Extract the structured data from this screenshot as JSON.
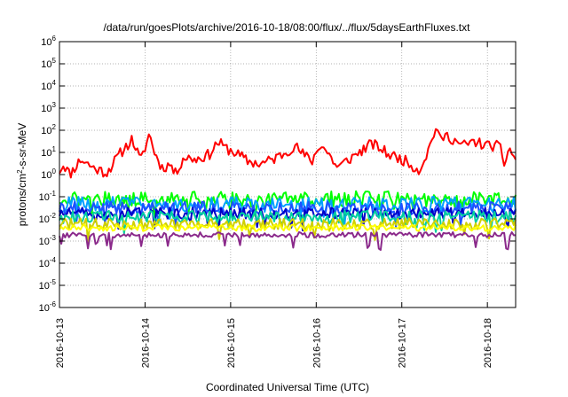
{
  "chart_data": {
    "type": "line",
    "title": "/data/run/goesPlots/archive/2016-10-18/08:00/flux/../flux/5daysEarthFluxes.txt",
    "xlabel": "Coordinated Universal Time (UTC)",
    "ylabel": {
      "prefix": "protons/cm",
      "sup": "2",
      "suffix": "-s-sr-MeV"
    },
    "x_ticks": [
      "2016-10-13",
      "2016-10-14",
      "2016-10-15",
      "2016-10-16",
      "2016-10-17",
      "2016-10-18"
    ],
    "y_ticks": [
      "-6",
      "-5",
      "-4",
      "-3",
      "-2",
      "-1",
      "0",
      "1",
      "2",
      "3",
      "4",
      "5",
      "6"
    ],
    "y_tick_base": "10",
    "xlim_days": [
      0,
      5.33
    ],
    "y_scale": "log",
    "ylim": [
      1e-06,
      1000000.0
    ],
    "grid": true,
    "legend": "none",
    "series": [
      {
        "color": "#ff0000",
        "base": 8,
        "jitter": 0.25,
        "seed": 11,
        "keypoints": [
          [
            0.0,
            1.5
          ],
          [
            0.05,
            3
          ],
          [
            0.12,
            1.0
          ],
          [
            0.25,
            5
          ],
          [
            0.4,
            2
          ],
          [
            0.55,
            1.2
          ],
          [
            0.7,
            8
          ],
          [
            0.85,
            40
          ],
          [
            0.95,
            4
          ],
          [
            1.05,
            70
          ],
          [
            1.12,
            8
          ],
          [
            1.2,
            2
          ],
          [
            1.3,
            3
          ],
          [
            1.35,
            1.0
          ],
          [
            1.45,
            6
          ],
          [
            1.6,
            5
          ],
          [
            1.75,
            8
          ],
          [
            1.85,
            30
          ],
          [
            1.95,
            15
          ],
          [
            2.05,
            10
          ],
          [
            2.2,
            4
          ],
          [
            2.35,
            3
          ],
          [
            2.5,
            5
          ],
          [
            2.6,
            8
          ],
          [
            2.75,
            20
          ],
          [
            2.85,
            8
          ],
          [
            2.95,
            4
          ],
          [
            3.05,
            25
          ],
          [
            3.15,
            8
          ],
          [
            3.25,
            2
          ],
          [
            3.35,
            4
          ],
          [
            3.5,
            10
          ],
          [
            3.65,
            25
          ],
          [
            3.75,
            15
          ],
          [
            3.85,
            8
          ],
          [
            4.0,
            5
          ],
          [
            4.1,
            3
          ],
          [
            4.2,
            1.5
          ],
          [
            4.3,
            10
          ],
          [
            4.35,
            35
          ],
          [
            4.4,
            150
          ],
          [
            4.45,
            30
          ],
          [
            4.5,
            60
          ],
          [
            4.6,
            40
          ],
          [
            4.7,
            20
          ],
          [
            4.85,
            30
          ],
          [
            5.0,
            20
          ],
          [
            5.1,
            20
          ],
          [
            5.15,
            15
          ],
          [
            5.2,
            3
          ],
          [
            5.25,
            15
          ],
          [
            5.3,
            8
          ],
          [
            5.33,
            5
          ]
        ]
      },
      {
        "color": "#00ff00",
        "base": 0.08,
        "jitter": 0.35,
        "seed": 21,
        "dips": true
      },
      {
        "color": "#00a0ff",
        "base": 0.045,
        "jitter": 0.35,
        "seed": 31,
        "dips": true
      },
      {
        "color": "#1e50ff",
        "base": 0.03,
        "jitter": 0.3,
        "seed": 41,
        "dips": true
      },
      {
        "color": "#0000c8",
        "base": 0.018,
        "jitter": 0.25,
        "seed": 51,
        "dips": true
      },
      {
        "color": "#00d0a0",
        "base": 0.012,
        "jitter": 0.3,
        "seed": 61,
        "dips": true
      },
      {
        "color": "#d0d000",
        "base": 0.006,
        "jitter": 0.25,
        "seed": 71,
        "dips": true
      },
      {
        "color": "#ffff00",
        "base": 0.004,
        "jitter": 0.15,
        "seed": 81,
        "dips": false
      },
      {
        "color": "#8b2a8b",
        "base": 0.0019,
        "jitter": 0.12,
        "seed": 91,
        "dips": true
      }
    ]
  }
}
